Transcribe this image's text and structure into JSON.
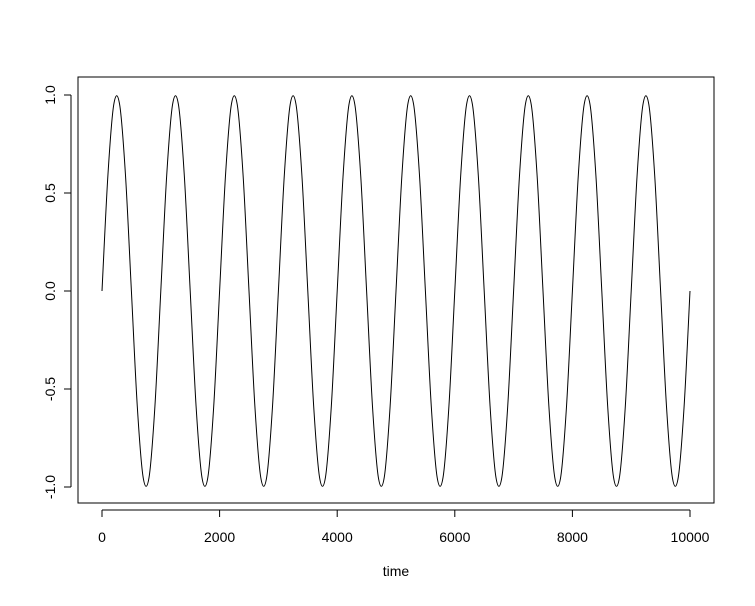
{
  "chart_data": {
    "type": "line",
    "title": "",
    "xlabel": "time",
    "ylabel": "",
    "xlim": [
      0,
      10000
    ],
    "ylim": [
      -1,
      1
    ],
    "grid": false,
    "x_ticks": [
      "0",
      "2000",
      "4000",
      "6000",
      "8000",
      "10000"
    ],
    "y_ticks": [
      "-1.0",
      "-0.5",
      "0.0",
      "0.5",
      "1.0"
    ],
    "line_color": "#000000",
    "series": [
      {
        "x": [
          0,
          100,
          200,
          300,
          400,
          500,
          600,
          700,
          800,
          900,
          1000,
          1100,
          1200,
          1300,
          1400,
          1500,
          1600,
          1700,
          1800,
          1900,
          2000,
          2100,
          2200,
          2300,
          2400,
          2500,
          2600,
          2700,
          2800,
          2900,
          3000,
          3100,
          3200,
          3300,
          3400,
          3500,
          3600,
          3700,
          3800,
          3900,
          4000,
          4100,
          4200,
          4300,
          4400,
          4500,
          4600,
          4700,
          4800,
          4900,
          5000,
          5100,
          5200,
          5300,
          5400,
          5500,
          5600,
          5700,
          5800,
          5900,
          6000,
          6100,
          6200,
          6300,
          6400,
          6500,
          6600,
          6700,
          6800,
          6900,
          7000,
          7100,
          7200,
          7300,
          7400,
          7500,
          7600,
          7700,
          7800,
          7900,
          8000,
          8100,
          8200,
          8300,
          8400,
          8500,
          8600,
          8700,
          8800,
          8900,
          9000,
          9100,
          9200,
          9300,
          9400,
          9500,
          9600,
          9700,
          9800,
          9900,
          10000
        ],
        "y": [
          0,
          0.588,
          0.951,
          0.951,
          0.588,
          0,
          -0.588,
          -0.951,
          -0.951,
          -0.588,
          0,
          0.588,
          0.951,
          0.951,
          0.588,
          0,
          -0.588,
          -0.951,
          -0.951,
          -0.588,
          0,
          0.588,
          0.951,
          0.951,
          0.588,
          0,
          -0.588,
          -0.951,
          -0.951,
          -0.588,
          0,
          0.588,
          0.951,
          0.951,
          0.588,
          0,
          -0.588,
          -0.951,
          -0.951,
          -0.588,
          0,
          0.588,
          0.951,
          0.951,
          0.588,
          0,
          -0.588,
          -0.951,
          -0.951,
          -0.588,
          0,
          0.588,
          0.951,
          0.951,
          0.588,
          0,
          -0.588,
          -0.951,
          -0.951,
          -0.588,
          0,
          0.588,
          0.951,
          0.951,
          0.588,
          0,
          -0.588,
          -0.951,
          -0.951,
          -0.588,
          0,
          0.588,
          0.951,
          0.951,
          0.588,
          0,
          -0.588,
          -0.951,
          -0.951,
          -0.588,
          0,
          0.588,
          0.951,
          0.951,
          0.588,
          0,
          -0.588,
          -0.951,
          -0.951,
          -0.588,
          0,
          0.588,
          0.951,
          0.951,
          0.588,
          0,
          -0.588,
          -0.951,
          -0.951,
          -0.588,
          0
        ]
      }
    ]
  }
}
